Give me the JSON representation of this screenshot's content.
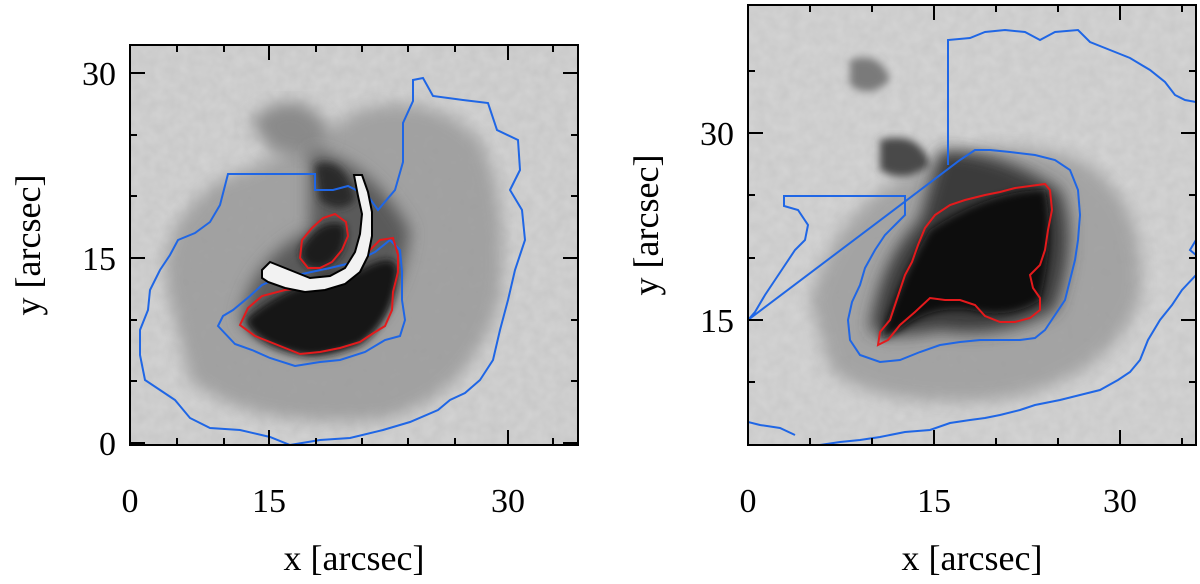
{
  "figure": {
    "panels": [
      {
        "id": "left",
        "xlabel": "x [arcsec]",
        "ylabel": "y [arcsec]",
        "xticks": [
          "0",
          "15",
          "30"
        ],
        "yticks": [
          "0",
          "15",
          "30"
        ],
        "contours": [
          {
            "name": "",
            "color": "#1f66e5"
          },
          {
            "name": "",
            "color": "#e41a1c"
          },
          {
            "name": "",
            "color": "#000000"
          }
        ]
      },
      {
        "id": "right",
        "xlabel": "x [arcsec]",
        "ylabel": "y [arcsec]",
        "xticks": [
          "0",
          "15",
          "30"
        ],
        "yticks": [
          "15",
          "30"
        ],
        "contours": [
          {
            "name": "",
            "color": "#1f66e5"
          },
          {
            "name": "",
            "color": "#e41a1c"
          }
        ]
      }
    ]
  },
  "colors": {
    "outer_contour": "#1f66e5",
    "inner_contour": "#e41a1c",
    "extra_contour": "#000000",
    "background_quiet_sun": "#c8c8c8",
    "penumbra": "#8a8a8a",
    "umbra": "#101010"
  }
}
